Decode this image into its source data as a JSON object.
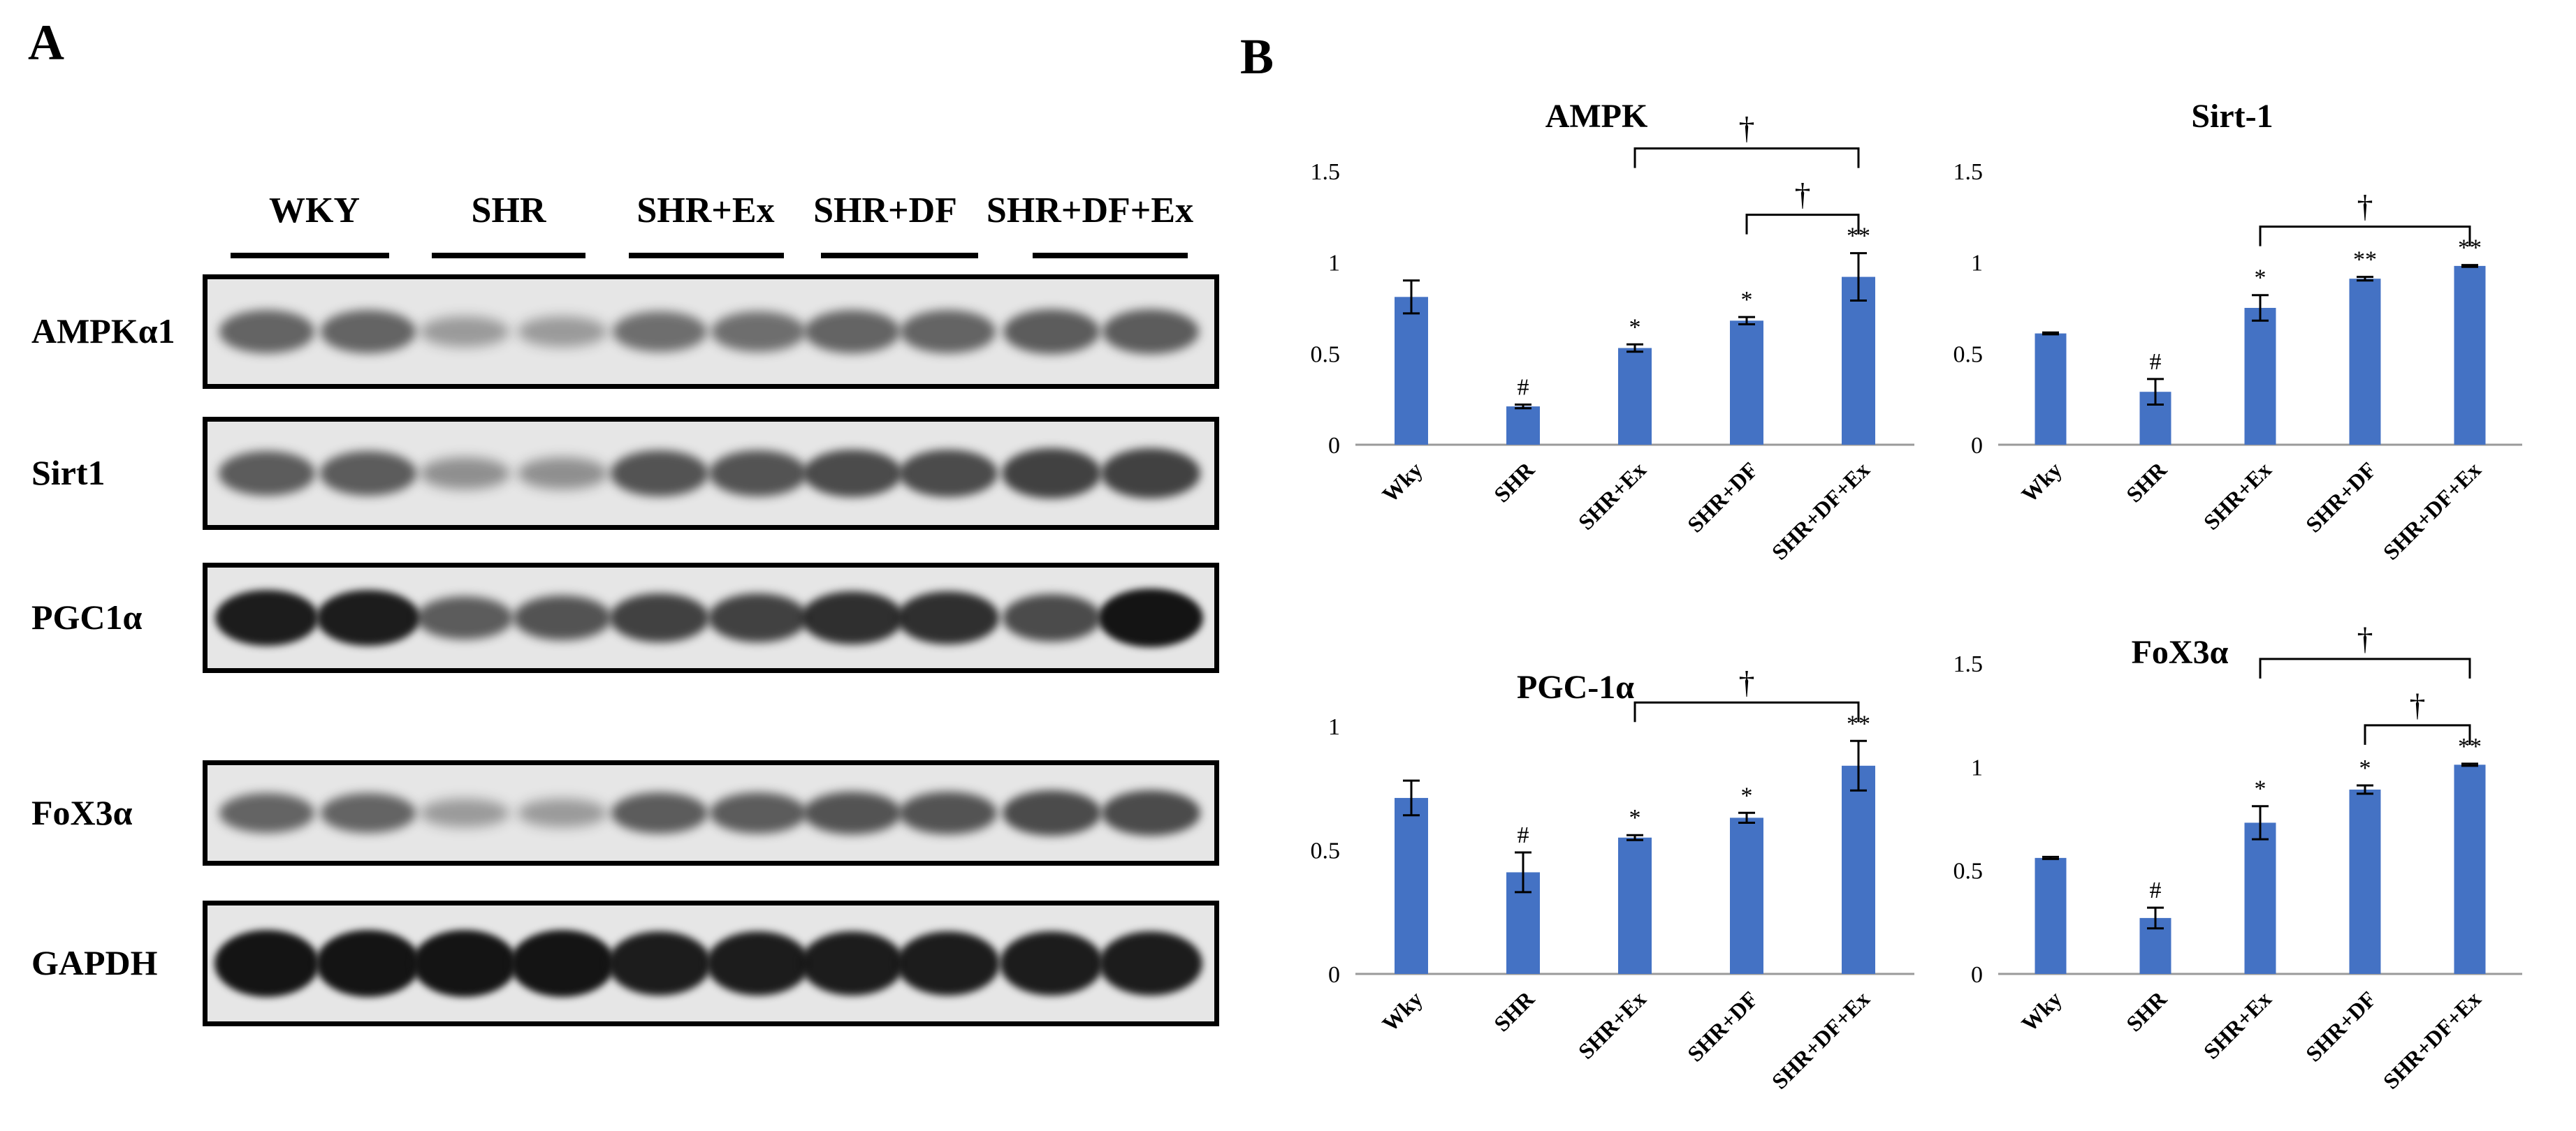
{
  "panels": {
    "a": "A",
    "b": "B"
  },
  "blot": {
    "groups": [
      "WKY",
      "SHR",
      "SHR+Ex",
      "SHR+DF",
      "SHR+DF+Ex"
    ],
    "rows": [
      {
        "label": "AMPKα1",
        "intensity": [
          0.55,
          0.55,
          0.25,
          0.25,
          0.5,
          0.5,
          0.55,
          0.55,
          0.6,
          0.6
        ]
      },
      {
        "label": "Sirt1",
        "intensity": [
          0.6,
          0.6,
          0.3,
          0.3,
          0.65,
          0.65,
          0.7,
          0.7,
          0.75,
          0.75
        ]
      },
      {
        "label": "PGC1α",
        "intensity": [
          0.95,
          0.95,
          0.6,
          0.65,
          0.75,
          0.75,
          0.85,
          0.85,
          0.7,
          1.0
        ]
      },
      {
        "label": "FoX3α",
        "intensity": [
          0.55,
          0.55,
          0.25,
          0.25,
          0.6,
          0.6,
          0.65,
          0.65,
          0.7,
          0.7
        ]
      },
      {
        "label": "GAPDH",
        "intensity": [
          1.0,
          1.0,
          1.0,
          1.0,
          0.95,
          0.95,
          0.95,
          0.95,
          0.95,
          0.95
        ]
      }
    ]
  },
  "colors": {
    "bar": "#4472C4",
    "band": "#141414",
    "blot_background": "#e6e6e6"
  },
  "chart_data": [
    {
      "type": "bar",
      "title": "AMPK",
      "categories": [
        "Wky",
        "SHR",
        "SHR+Ex",
        "SHR+DF",
        "SHR+DF+Ex"
      ],
      "values": [
        0.81,
        0.21,
        0.53,
        0.68,
        0.92
      ],
      "errors": [
        0.09,
        0.01,
        0.02,
        0.02,
        0.13
      ],
      "annotations": [
        "",
        "#",
        "*",
        "*",
        "**"
      ],
      "ylim": [
        0,
        1.5
      ],
      "yticks": [
        0,
        0.5,
        1,
        1.5
      ],
      "brackets": [
        {
          "from": 2,
          "to": 4,
          "label": "†"
        },
        {
          "from": 3,
          "to": 4,
          "label": "†"
        }
      ]
    },
    {
      "type": "bar",
      "title": "Sirt-1",
      "categories": [
        "Wky",
        "SHR",
        "SHR+Ex",
        "SHR+DF",
        "SHR+DF+Ex"
      ],
      "values": [
        0.61,
        0.29,
        0.75,
        0.91,
        0.98
      ],
      "errors": [
        0.005,
        0.07,
        0.07,
        0.01,
        0.005
      ],
      "annotations": [
        "",
        "#",
        "*",
        "**",
        "**"
      ],
      "ylim": [
        0,
        1.5
      ],
      "yticks": [
        0,
        0.5,
        1,
        1.5
      ],
      "brackets": [
        {
          "from": 2,
          "to": 4,
          "label": "†"
        }
      ]
    },
    {
      "type": "bar",
      "title": "PGC-1α",
      "categories": [
        "Wky",
        "SHR",
        "SHR+Ex",
        "SHR+DF",
        "SHR+DF+Ex"
      ],
      "values": [
        0.71,
        0.41,
        0.55,
        0.63,
        0.84
      ],
      "errors": [
        0.07,
        0.08,
        0.01,
        0.02,
        0.1
      ],
      "annotations": [
        "",
        "#",
        "*",
        "*",
        "**"
      ],
      "ylim": [
        0,
        1
      ],
      "yticks": [
        0,
        0.5,
        1
      ],
      "brackets": [
        {
          "from": 2,
          "to": 4,
          "label": "†"
        }
      ]
    },
    {
      "type": "bar",
      "title": "FoX3α",
      "categories": [
        "Wky",
        "SHR",
        "SHR+Ex",
        "SHR+DF",
        "SHR+DF+Ex"
      ],
      "values": [
        0.56,
        0.27,
        0.73,
        0.89,
        1.01
      ],
      "errors": [
        0.005,
        0.05,
        0.08,
        0.02,
        0.005
      ],
      "annotations": [
        "",
        "#",
        "*",
        "*",
        "**"
      ],
      "ylim": [
        0,
        1.5
      ],
      "yticks": [
        0,
        0.5,
        1,
        1.5
      ],
      "brackets": [
        {
          "from": 2,
          "to": 4,
          "label": "†"
        },
        {
          "from": 3,
          "to": 4,
          "label": "†"
        }
      ]
    }
  ]
}
